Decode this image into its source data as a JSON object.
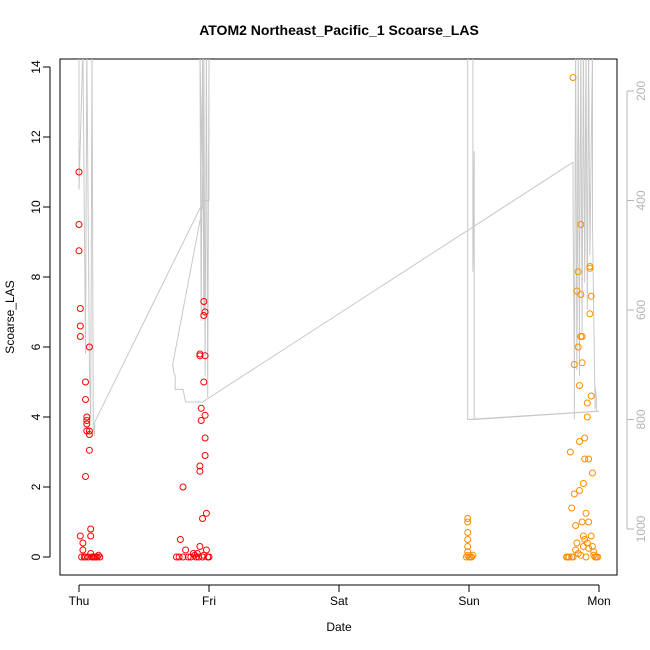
{
  "chart_data": {
    "type": "scatter",
    "title": "ATOM2 Northeast_Pacific_1 Scoarse_LAS",
    "xlabel": "Date",
    "ylabel": "Scoarse_LAS",
    "x_ticks": [
      "Thu",
      "Fri",
      "Sat",
      "Sun",
      "Mon"
    ],
    "y_ticks": [
      "0",
      "2",
      "4",
      "6",
      "8",
      "10",
      "12",
      "14"
    ],
    "y_right_ticks": [
      "200",
      "400",
      "600",
      "800",
      "1000"
    ],
    "ylim": [
      0,
      14.3
    ],
    "y_right_lim_inverted": [
      125,
      1050
    ],
    "xlim_days": [
      -0.1,
      4.1
    ],
    "right_axis_reversed": true,
    "grid": false,
    "legend": "none",
    "colors": {
      "early": "#ff0000",
      "late": "#ff8c00",
      "depth_line": "#c8c8c8",
      "axis": "#000000",
      "right_axis": "#b4b4b4"
    },
    "series": [
      {
        "color": "#ff0000",
        "points": [
          [
            0.0,
            11.0
          ],
          [
            0.0,
            9.5
          ],
          [
            0.0,
            8.75
          ],
          [
            0.01,
            7.1
          ],
          [
            0.01,
            6.6
          ],
          [
            0.01,
            6.3
          ],
          [
            0.01,
            0.6
          ],
          [
            0.03,
            0.4
          ],
          [
            0.03,
            0.2
          ],
          [
            0.05,
            5.0
          ],
          [
            0.05,
            4.5
          ],
          [
            0.05,
            2.3
          ],
          [
            0.05,
            0.0
          ],
          [
            0.06,
            4.0
          ],
          [
            0.06,
            3.9
          ],
          [
            0.06,
            3.8
          ],
          [
            0.06,
            3.6
          ],
          [
            0.08,
            3.6
          ],
          [
            0.08,
            3.5
          ],
          [
            0.08,
            3.05
          ],
          [
            0.08,
            6.0
          ],
          [
            0.09,
            0.8
          ],
          [
            0.09,
            0.6
          ],
          [
            0.09,
            0.1
          ],
          [
            0.1,
            0.0
          ],
          [
            0.12,
            0.0
          ],
          [
            0.14,
            0.0
          ],
          [
            0.16,
            0.0
          ],
          [
            0.02,
            0.0
          ],
          [
            0.04,
            0.0
          ],
          [
            0.07,
            0.0
          ],
          [
            0.11,
            0.0
          ],
          [
            0.13,
            0.0
          ],
          [
            0.15,
            0.05
          ],
          [
            0.75,
            0.0
          ],
          [
            0.77,
            0.0
          ],
          [
            0.78,
            0.5
          ],
          [
            0.8,
            2.0
          ],
          [
            0.8,
            0.0
          ],
          [
            0.82,
            0.2
          ],
          [
            0.84,
            0.0
          ],
          [
            0.86,
            0.0
          ],
          [
            0.88,
            0.1
          ],
          [
            0.9,
            0.0
          ],
          [
            0.92,
            0.0
          ],
          [
            0.93,
            0.3
          ],
          [
            0.93,
            2.6
          ],
          [
            0.93,
            2.45
          ],
          [
            0.93,
            5.8
          ],
          [
            0.93,
            5.75
          ],
          [
            0.94,
            4.25
          ],
          [
            0.94,
            3.9
          ],
          [
            0.95,
            1.1
          ],
          [
            0.95,
            0.0
          ],
          [
            0.96,
            0.05
          ],
          [
            0.96,
            5.0
          ],
          [
            0.96,
            6.9
          ],
          [
            0.96,
            7.3
          ],
          [
            0.97,
            7.0
          ],
          [
            0.97,
            5.75
          ],
          [
            0.97,
            4.05
          ],
          [
            0.97,
            3.4
          ],
          [
            0.97,
            2.9
          ],
          [
            0.98,
            1.25
          ],
          [
            0.98,
            0.2
          ],
          [
            0.99,
            0.0
          ],
          [
            1.0,
            0.0
          ],
          [
            0.91,
            0.1
          ],
          [
            0.89,
            0.05
          ]
        ]
      },
      {
        "color": "#ff8c00",
        "points": [
          [
            2.99,
            1.1
          ],
          [
            2.99,
            1.0
          ],
          [
            2.99,
            0.7
          ],
          [
            2.99,
            0.5
          ],
          [
            2.99,
            0.3
          ],
          [
            2.99,
            0.15
          ],
          [
            2.99,
            0.05
          ],
          [
            2.98,
            0.0
          ],
          [
            3.0,
            0.0
          ],
          [
            3.01,
            0.0
          ],
          [
            3.02,
            0.0
          ],
          [
            3.03,
            0.05
          ],
          [
            3.75,
            0.0
          ],
          [
            3.77,
            0.0
          ],
          [
            3.78,
            3.0
          ],
          [
            3.79,
            1.4
          ],
          [
            3.8,
            0.0
          ],
          [
            3.81,
            1.8
          ],
          [
            3.82,
            0.9
          ],
          [
            3.8,
            13.7
          ],
          [
            3.81,
            5.5
          ],
          [
            3.83,
            7.6
          ],
          [
            3.84,
            8.15
          ],
          [
            3.84,
            6.0
          ],
          [
            3.85,
            4.9
          ],
          [
            3.85,
            3.3
          ],
          [
            3.86,
            9.5
          ],
          [
            3.86,
            7.5
          ],
          [
            3.86,
            6.3
          ],
          [
            3.87,
            6.3
          ],
          [
            3.87,
            5.55
          ],
          [
            3.87,
            1.0
          ],
          [
            3.88,
            0.6
          ],
          [
            3.88,
            0.3
          ],
          [
            3.89,
            3.4
          ],
          [
            3.89,
            2.8
          ],
          [
            3.9,
            1.25
          ],
          [
            3.9,
            0.0
          ],
          [
            3.91,
            4.4
          ],
          [
            3.91,
            4.0
          ],
          [
            3.92,
            2.8
          ],
          [
            3.92,
            1.0
          ],
          [
            3.93,
            6.95
          ],
          [
            3.93,
            8.3
          ],
          [
            3.93,
            8.25
          ],
          [
            3.94,
            7.45
          ],
          [
            3.94,
            4.6
          ],
          [
            3.95,
            2.4
          ],
          [
            3.95,
            0.3
          ],
          [
            3.96,
            0.15
          ],
          [
            3.97,
            0.0
          ],
          [
            3.98,
            0.0
          ],
          [
            3.99,
            0.0
          ],
          [
            3.83,
            0.4
          ],
          [
            3.84,
            0.1
          ],
          [
            3.85,
            1.9
          ],
          [
            3.86,
            0.05
          ],
          [
            3.88,
            2.1
          ],
          [
            3.89,
            0.5
          ],
          [
            3.91,
            0.4
          ],
          [
            3.92,
            0.25
          ],
          [
            3.94,
            0.6
          ],
          [
            3.96,
            0.05
          ],
          [
            3.82,
            0.2
          ],
          [
            3.79,
            0.0
          ],
          [
            3.76,
            0.0
          ]
        ]
      }
    ],
    "depth_line": {
      "color": "#c8c8c8",
      "points": [
        [
          0.0,
          120
        ],
        [
          0.0,
          300
        ],
        [
          0.0,
          380
        ],
        [
          0.03,
          120
        ],
        [
          0.05,
          680
        ],
        [
          0.06,
          120
        ],
        [
          0.08,
          700
        ],
        [
          0.09,
          800
        ],
        [
          0.1,
          120
        ],
        [
          0.11,
          820
        ],
        [
          0.12,
          830
        ],
        [
          0.12,
          805
        ],
        [
          0.95,
          405
        ],
        [
          0.93,
          120
        ],
        [
          0.94,
          620
        ],
        [
          0.95,
          120
        ],
        [
          0.96,
          600
        ],
        [
          0.96,
          120
        ],
        [
          0.97,
          720
        ],
        [
          0.98,
          120
        ],
        [
          0.99,
          760
        ],
        [
          1.0,
          120
        ],
        [
          1.0,
          400
        ],
        [
          0.96,
          400
        ],
        [
          0.72,
          700
        ],
        [
          0.73,
          715
        ],
        [
          0.74,
          720
        ],
        [
          0.74,
          745
        ],
        [
          0.8,
          745
        ],
        [
          0.82,
          768
        ],
        [
          0.95,
          768
        ],
        [
          3.8,
          330
        ],
        [
          3.8,
          400
        ],
        [
          3.81,
          700
        ],
        [
          3.81,
          800
        ],
        [
          3.82,
          120
        ],
        [
          3.83,
          710
        ],
        [
          3.84,
          120
        ],
        [
          3.85,
          720
        ],
        [
          3.85,
          560
        ],
        [
          3.86,
          120
        ],
        [
          3.87,
          640
        ],
        [
          3.88,
          120
        ],
        [
          3.89,
          550
        ],
        [
          3.9,
          120
        ],
        [
          3.91,
          600
        ],
        [
          3.92,
          120
        ],
        [
          3.93,
          500
        ],
        [
          3.93,
          500
        ],
        [
          3.95,
          120
        ],
        [
          3.95,
          450
        ],
        [
          3.97,
          780
        ],
        [
          3.97,
          740
        ],
        [
          3.98,
          760
        ],
        [
          3.98,
          785
        ],
        [
          2.99,
          800
        ],
        [
          2.99,
          120
        ],
        [
          3.03,
          120
        ],
        [
          3.03,
          450
        ],
        [
          3.03,
          530
        ],
        [
          3.04,
          310
        ],
        [
          3.04,
          800
        ],
        [
          4.0,
          785
        ]
      ]
    }
  }
}
